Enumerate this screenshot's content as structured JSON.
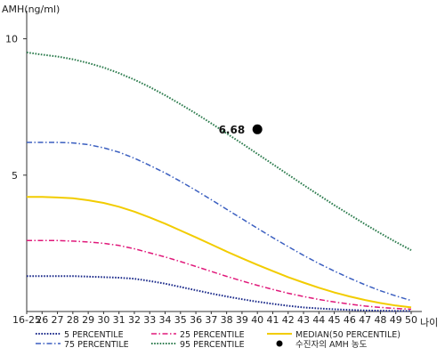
{
  "chart_data": {
    "type": "line",
    "ylabel": "AMH(ng/ml)",
    "xlabel": "나이",
    "categories": [
      "16-25",
      "26",
      "27",
      "28",
      "29",
      "30",
      "31",
      "32",
      "33",
      "34",
      "35",
      "36",
      "37",
      "38",
      "39",
      "40",
      "41",
      "42",
      "43",
      "44",
      "45",
      "46",
      "47",
      "48",
      "49",
      "50"
    ],
    "y_ticks": [
      5,
      10
    ],
    "ylim": [
      0,
      10.9
    ],
    "series": [
      {
        "name": "5 PERCENTILE",
        "color": "#1b2a8a",
        "style": "dotted",
        "values": [
          1.3,
          1.3,
          1.3,
          1.3,
          1.28,
          1.26,
          1.24,
          1.2,
          1.12,
          1.02,
          0.9,
          0.78,
          0.66,
          0.55,
          0.45,
          0.36,
          0.28,
          0.21,
          0.15,
          0.11,
          0.08,
          0.06,
          0.04,
          0.03,
          0.02,
          0.02
        ]
      },
      {
        "name": "25 PERCENTILE",
        "color": "#e0187a",
        "style": "dash-dot",
        "values": [
          2.6,
          2.6,
          2.6,
          2.58,
          2.55,
          2.5,
          2.42,
          2.3,
          2.15,
          2.0,
          1.83,
          1.65,
          1.47,
          1.29,
          1.12,
          0.96,
          0.81,
          0.67,
          0.55,
          0.44,
          0.35,
          0.27,
          0.2,
          0.15,
          0.11,
          0.08
        ]
      },
      {
        "name": "MEDIAN(50 PERCENTILE)",
        "color": "#f2cc00",
        "style": "solid",
        "values": [
          4.2,
          4.2,
          4.18,
          4.15,
          4.08,
          3.98,
          3.84,
          3.66,
          3.45,
          3.22,
          2.97,
          2.72,
          2.46,
          2.2,
          1.95,
          1.71,
          1.48,
          1.26,
          1.06,
          0.87,
          0.7,
          0.55,
          0.42,
          0.31,
          0.22,
          0.15
        ]
      },
      {
        "name": "75 PERCENTILE",
        "color": "#3b5fc0",
        "style": "dash-dot",
        "values": [
          6.2,
          6.2,
          6.2,
          6.18,
          6.12,
          6.0,
          5.84,
          5.62,
          5.36,
          5.08,
          4.77,
          4.44,
          4.1,
          3.75,
          3.4,
          3.05,
          2.71,
          2.38,
          2.06,
          1.76,
          1.48,
          1.22,
          0.98,
          0.76,
          0.57,
          0.4
        ]
      },
      {
        "name": "95 PERCENTILE",
        "color": "#2e7d4f",
        "style": "dotted",
        "values": [
          9.5,
          9.42,
          9.35,
          9.25,
          9.11,
          8.95,
          8.74,
          8.5,
          8.23,
          7.93,
          7.6,
          7.26,
          6.9,
          6.53,
          6.16,
          5.78,
          5.4,
          5.02,
          4.64,
          4.27,
          3.9,
          3.55,
          3.2,
          2.87,
          2.55,
          2.25
        ]
      }
    ],
    "marker": {
      "label": "수진자의 AMH 농도",
      "x": "40",
      "y": 6.68,
      "value_text": "6.68",
      "color": "#000000"
    },
    "legend": {
      "placement": "bottom",
      "order": [
        "5 PERCENTILE",
        "25 PERCENTILE",
        "MEDIAN(50 PERCENTILE)",
        "75 PERCENTILE",
        "95 PERCENTILE",
        "수진자의 AMH 농도"
      ]
    }
  }
}
